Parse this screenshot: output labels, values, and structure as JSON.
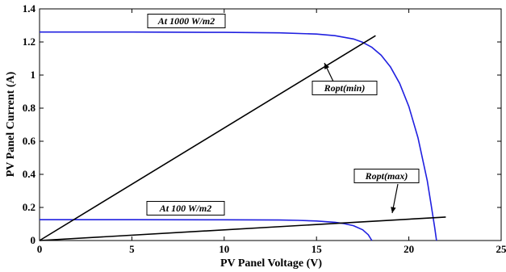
{
  "chart_data": {
    "type": "line",
    "xlabel": "PV Panel Voltage (V)",
    "ylabel": "PV Panel Current (A)",
    "xlim": [
      0,
      25
    ],
    "ylim": [
      0,
      1.4
    ],
    "xticks": [
      0,
      5,
      10,
      15,
      20,
      25
    ],
    "xtick_labels": [
      "0",
      "5",
      "10",
      "15",
      "20",
      "25"
    ],
    "yticks": [
      0,
      0.2,
      0.4,
      0.6,
      0.8,
      1.0,
      1.2,
      1.4
    ],
    "ytick_labels": [
      "0",
      "0.2",
      "0.4",
      "0.6",
      "0.8",
      "1",
      "1.2",
      "1.4"
    ],
    "grid": false,
    "series": [
      {
        "color": "#2020e0",
        "x": [
          0,
          5,
          10,
          13,
          15,
          16,
          17,
          17.5,
          18,
          18.5,
          19,
          19.5,
          20,
          20.5,
          21,
          21.2,
          21.4,
          21.5
        ],
        "y": [
          1.26,
          1.26,
          1.258,
          1.255,
          1.248,
          1.238,
          1.218,
          1.198,
          1.168,
          1.12,
          1.05,
          0.95,
          0.81,
          0.62,
          0.36,
          0.22,
          0.08,
          0.0
        ]
      },
      {
        "color": "#2020e0",
        "x": [
          0,
          5,
          10,
          13,
          14,
          15,
          16,
          16.5,
          17,
          17.5,
          17.8,
          18
        ],
        "y": [
          0.126,
          0.126,
          0.1255,
          0.124,
          0.122,
          0.118,
          0.11,
          0.102,
          0.09,
          0.065,
          0.035,
          0.0
        ]
      },
      {
        "color": "#000000",
        "x": [
          0,
          18.2
        ],
        "y": [
          0,
          1.238
        ]
      },
      {
        "color": "#000000",
        "x": [
          0,
          22
        ],
        "y": [
          0,
          0.142
        ]
      }
    ],
    "annotations": [
      {
        "id": "at1000",
        "text": "At 1000 W/m2"
      },
      {
        "id": "at100",
        "text": "At 100 W/m2"
      },
      {
        "id": "ropt_min",
        "text": "Ropt(min)"
      },
      {
        "id": "ropt_max",
        "text": "Ropt(max)"
      }
    ]
  }
}
